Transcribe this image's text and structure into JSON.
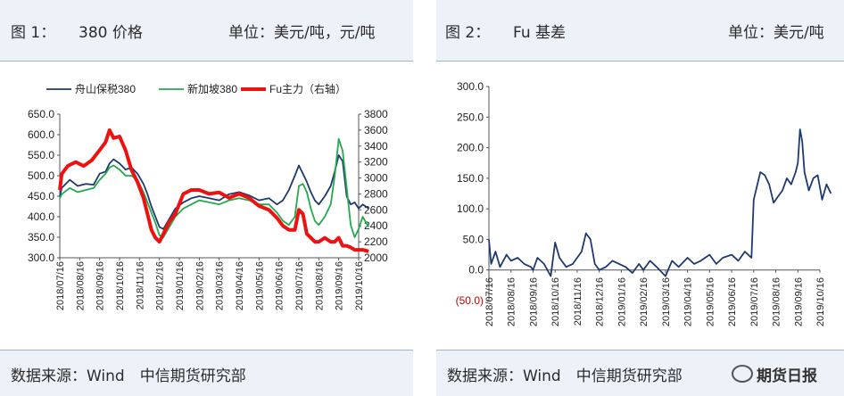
{
  "fig1": {
    "label": "图 1：",
    "title": "380 价格",
    "unit": "单位：美元/吨，元/吨",
    "source": "数据来源：Wind　中信期货研究部"
  },
  "fig2": {
    "label": "图 2：",
    "title": "Fu 基差",
    "unit": "单位：美元/吨",
    "source": "数据来源：Wind　中信期货研究部"
  },
  "watermark": "期货日报",
  "colors": {
    "zhoushan": "#1f3a6e",
    "singapore": "#25a94c",
    "fu": "#ee1111",
    "basis": "#1f3a6e"
  },
  "chart_data": [
    {
      "type": "line",
      "legend_position": "top",
      "categories": [
        "2018/07/16",
        "2018/08/16",
        "2018/09/16",
        "2018/10/16",
        "2018/11/16",
        "2018/12/16",
        "2019/01/16",
        "2019/02/16",
        "2019/03/16",
        "2019/04/16",
        "2019/05/16",
        "2019/06/16",
        "2019/07/16",
        "2019/08/16",
        "2019/09/16",
        "2019/10/16"
      ],
      "ylim": [
        300,
        650
      ],
      "yticks": [
        "300.0",
        "350.0",
        "400.0",
        "450.0",
        "500.0",
        "550.0",
        "600.0",
        "650.0"
      ],
      "y2lim": [
        2000,
        3800
      ],
      "y2ticks": [
        "2000",
        "2200",
        "2400",
        "2600",
        "2800",
        "3000",
        "3200",
        "3400",
        "3600",
        "3800"
      ],
      "grid": false,
      "series": [
        {
          "name": "舟山保税380",
          "axis": "left",
          "x": [
            0,
            0.1,
            0.5,
            0.9,
            1.3,
            1.7,
            2.0,
            2.3,
            2.5,
            2.7,
            3.0,
            3.3,
            3.6,
            3.9,
            4.2,
            4.4,
            4.6,
            4.8,
            5.0,
            5.2,
            5.5,
            5.8,
            6.2,
            6.6,
            7.0,
            7.5,
            8.0,
            8.5,
            9.0,
            9.5,
            10.0,
            10.5,
            10.9,
            11.2,
            11.5,
            11.8,
            12.0,
            12.2,
            12.4,
            12.6,
            12.8,
            13.0,
            13.3,
            13.6,
            13.8,
            14.0,
            14.2,
            14.4,
            14.6,
            14.8,
            15.0,
            15.2,
            15.5
          ],
          "values": [
            450,
            470,
            490,
            475,
            480,
            478,
            505,
            510,
            530,
            540,
            530,
            515,
            520,
            505,
            480,
            455,
            425,
            400,
            375,
            370,
            395,
            420,
            435,
            445,
            450,
            445,
            440,
            455,
            460,
            452,
            440,
            445,
            430,
            440,
            465,
            500,
            525,
            505,
            485,
            460,
            440,
            430,
            450,
            475,
            510,
            550,
            535,
            450,
            430,
            435,
            420,
            430,
            420
          ]
        },
        {
          "name": "新加坡380",
          "axis": "left",
          "x": [
            0,
            0.1,
            0.5,
            0.9,
            1.3,
            1.7,
            2.0,
            2.3,
            2.5,
            2.7,
            3.0,
            3.3,
            3.6,
            3.9,
            4.2,
            4.4,
            4.6,
            4.8,
            5.0,
            5.2,
            5.5,
            5.8,
            6.2,
            6.6,
            7.0,
            7.5,
            8.0,
            8.5,
            9.0,
            9.5,
            10.0,
            10.5,
            10.9,
            11.2,
            11.5,
            11.8,
            12.0,
            12.2,
            12.4,
            12.6,
            12.8,
            13.0,
            13.3,
            13.6,
            13.8,
            14.0,
            14.2,
            14.4,
            14.6,
            14.8,
            15.0,
            15.2,
            15.5
          ],
          "values": [
            445,
            455,
            470,
            460,
            465,
            470,
            490,
            505,
            520,
            525,
            515,
            500,
            500,
            490,
            460,
            435,
            410,
            385,
            355,
            350,
            375,
            400,
            420,
            430,
            440,
            435,
            430,
            440,
            445,
            440,
            430,
            430,
            410,
            390,
            380,
            400,
            475,
            480,
            460,
            420,
            390,
            380,
            400,
            430,
            500,
            590,
            560,
            470,
            380,
            350,
            370,
            400,
            375
          ]
        },
        {
          "name": "Fu主力（右轴）",
          "axis": "right",
          "x": [
            0,
            0.1,
            0.4,
            0.8,
            1.2,
            1.6,
            2.0,
            2.3,
            2.5,
            2.7,
            3.0,
            3.3,
            3.6,
            3.9,
            4.2,
            4.4,
            4.6,
            4.8,
            5.0,
            5.2,
            5.5,
            5.8,
            6.2,
            6.6,
            7.0,
            7.5,
            8.0,
            8.5,
            9.0,
            9.5,
            10.0,
            10.5,
            10.9,
            11.2,
            11.5,
            11.8,
            12.0,
            12.2,
            12.4,
            12.6,
            12.8,
            13.0,
            13.3,
            13.6,
            13.8,
            14.0,
            14.2,
            14.4,
            14.6,
            14.8,
            15.0,
            15.2,
            15.5
          ],
          "values": [
            2850,
            3050,
            3150,
            3200,
            3150,
            3220,
            3350,
            3450,
            3600,
            3500,
            3520,
            3350,
            3100,
            2950,
            2750,
            2550,
            2350,
            2250,
            2200,
            2300,
            2450,
            2550,
            2800,
            2850,
            2850,
            2800,
            2820,
            2750,
            2800,
            2750,
            2650,
            2600,
            2500,
            2400,
            2350,
            2350,
            2600,
            2550,
            2300,
            2250,
            2200,
            2200,
            2250,
            2200,
            2200,
            2250,
            2150,
            2150,
            2130,
            2100,
            2100,
            2100,
            2080
          ]
        }
      ]
    },
    {
      "type": "line",
      "categories": [
        "2018/07/16",
        "2018/08/16",
        "2018/09/16",
        "2018/10/16",
        "2018/11/16",
        "2018/12/16",
        "2019/01/16",
        "2019/02/16",
        "2019/03/16",
        "2019/04/16",
        "2019/05/16",
        "2019/06/16",
        "2019/07/16",
        "2019/08/16",
        "2019/09/16",
        "2019/10/16"
      ],
      "ylim": [
        -50,
        300
      ],
      "yticks": [
        "(50.0)",
        "0.0",
        "50.0",
        "100.0",
        "150.0",
        "200.0",
        "250.0",
        "300.0"
      ],
      "grid": false,
      "series": [
        {
          "name": "Fu 基差",
          "x": [
            0,
            0.1,
            0.3,
            0.5,
            0.8,
            1.0,
            1.3,
            1.6,
            1.9,
            2.0,
            2.2,
            2.5,
            2.8,
            3.0,
            3.2,
            3.5,
            3.8,
            4.0,
            4.2,
            4.4,
            4.6,
            4.8,
            5.0,
            5.3,
            5.6,
            5.9,
            6.2,
            6.5,
            6.8,
            7.0,
            7.3,
            7.6,
            8.0,
            8.3,
            8.6,
            9.0,
            9.3,
            9.6,
            10.0,
            10.3,
            10.6,
            11.0,
            11.3,
            11.6,
            11.9,
            12.0,
            12.1,
            12.3,
            12.5,
            12.7,
            12.9,
            13.1,
            13.3,
            13.5,
            13.7,
            13.9,
            14.0,
            14.1,
            14.2,
            14.3,
            14.5,
            14.7,
            14.9,
            15.1,
            15.3,
            15.5
          ],
          "values": [
            50,
            10,
            30,
            5,
            25,
            15,
            20,
            10,
            5,
            0,
            20,
            10,
            -10,
            45,
            20,
            5,
            10,
            20,
            30,
            60,
            50,
            10,
            0,
            5,
            15,
            10,
            5,
            -5,
            10,
            0,
            15,
            5,
            -10,
            15,
            5,
            20,
            10,
            15,
            25,
            10,
            20,
            25,
            15,
            30,
            20,
            115,
            130,
            160,
            155,
            140,
            110,
            120,
            130,
            150,
            140,
            160,
            175,
            230,
            210,
            160,
            130,
            150,
            155,
            115,
            140,
            125
          ]
        }
      ]
    }
  ]
}
